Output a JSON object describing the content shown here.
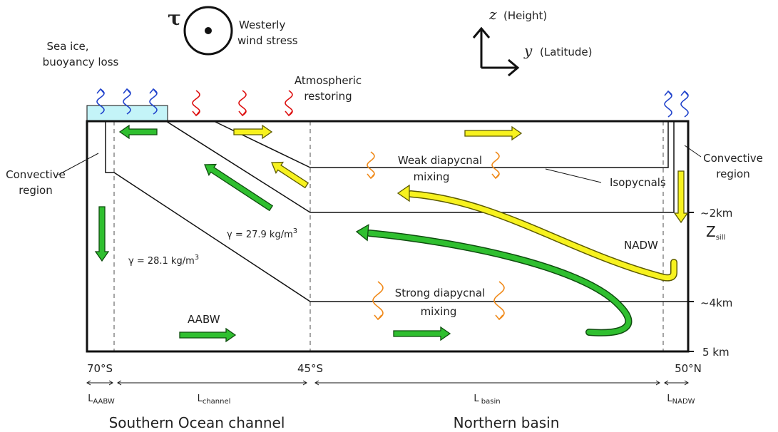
{
  "wind": {
    "symbol": "τ",
    "label": [
      "Westerly",
      "wind stress"
    ]
  },
  "axes": {
    "z": "z",
    "z_label": "(Height)",
    "y": "y",
    "y_label": "(Latitude)"
  },
  "sea_ice": [
    "Sea ice,",
    "buoyancy loss"
  ],
  "atmospheric": [
    "Atmospheric",
    "restoring"
  ],
  "convective_left": [
    "Convective",
    "region"
  ],
  "convective_right": [
    "Convective",
    "region"
  ],
  "weak_mixing": [
    "Weak diapycnal",
    "mixing"
  ],
  "strong_mixing": [
    "Strong diapycnal",
    "mixing"
  ],
  "isopycnals": "Isopycnals",
  "depths": {
    "d2": "~2km",
    "zsill": {
      "main": "Z",
      "sub": "sill"
    },
    "d4": "~4km",
    "d5": "5 km"
  },
  "water_masses": {
    "nadw": "NADW",
    "aabw": "AABW"
  },
  "densities": [
    {
      "text": "γ = 27.9 kg/m",
      "sup": "3"
    },
    {
      "text": "γ = 28.1 kg/m",
      "sup": "3"
    }
  ],
  "latitudes": [
    "70°S",
    "45°S",
    "50°N"
  ],
  "lengths": [
    {
      "main": "L",
      "sub": "AABW"
    },
    {
      "main": "L",
      "sub": "channel"
    },
    {
      "main": "L",
      "sub": " basin"
    },
    {
      "main": "L",
      "sub": "NADW"
    }
  ],
  "regions": [
    "Southern Ocean channel",
    "Northern basin"
  ]
}
